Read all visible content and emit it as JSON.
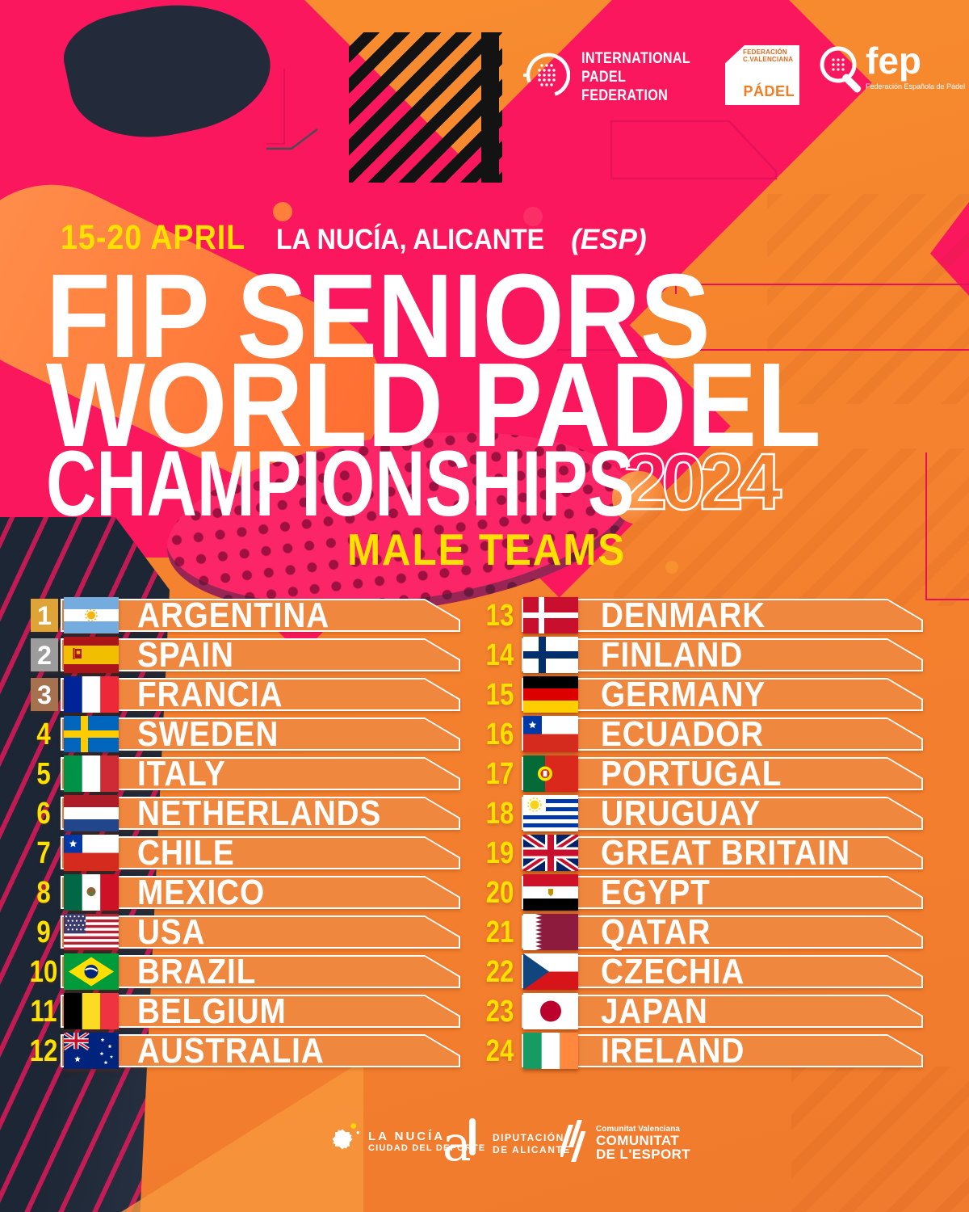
{
  "colors": {
    "bg-orange": "#F5822E",
    "bar-orange": "#F0873E",
    "pink": "#FA175E",
    "crimson": "#E5125A",
    "yellow": "#FFE100",
    "navy": "#232B3B",
    "white": "#FFFFFF",
    "gold": "#DFA437",
    "silver": "#9C9C9C",
    "bronze": "#A5714F"
  },
  "header_logos": {
    "ipf": {
      "line1": "INTERNATIONAL",
      "line2": "PADEL",
      "line3": "FEDERATION"
    },
    "fvp": {
      "small1": "FEDERACIÓN",
      "small2": "C.VALENCIANA",
      "label": "PÁDEL"
    },
    "fep": {
      "label": "fep",
      "sub": "Federación Española de Pádel"
    }
  },
  "event": {
    "dates": "15-20 APRIL",
    "location": "LA NUCÍA, ALICANTE",
    "location_suffix": "(ESP)",
    "title_line1": "FIP SENIORS",
    "title_line2": "WORLD PADEL",
    "title_line3": "CHAMPIONSHIPS",
    "year": "2024",
    "subtitle": "MALE TEAMS"
  },
  "teams": [
    {
      "num": "1",
      "name": "ARGENTINA",
      "flag": "argentina",
      "medal": "gold"
    },
    {
      "num": "2",
      "name": "SPAIN",
      "flag": "spain",
      "medal": "silver"
    },
    {
      "num": "3",
      "name": "FRANCIA",
      "flag": "france",
      "medal": "bronze"
    },
    {
      "num": "4",
      "name": "SWEDEN",
      "flag": "sweden",
      "medal": null
    },
    {
      "num": "5",
      "name": "ITALY",
      "flag": "italy",
      "medal": null
    },
    {
      "num": "6",
      "name": "NETHERLANDS",
      "flag": "netherlands",
      "medal": null
    },
    {
      "num": "7",
      "name": "CHILE",
      "flag": "chile",
      "medal": null
    },
    {
      "num": "8",
      "name": "MEXICO",
      "flag": "mexico",
      "medal": null
    },
    {
      "num": "9",
      "name": "USA",
      "flag": "usa",
      "medal": null
    },
    {
      "num": "10",
      "name": "BRAZIL",
      "flag": "brazil",
      "medal": null
    },
    {
      "num": "11",
      "name": "BELGIUM",
      "flag": "belgium",
      "medal": null
    },
    {
      "num": "12",
      "name": "AUSTRALIA",
      "flag": "australia",
      "medal": null
    },
    {
      "num": "13",
      "name": "DENMARK",
      "flag": "denmark",
      "medal": null
    },
    {
      "num": "14",
      "name": "FINLAND",
      "flag": "finland",
      "medal": null
    },
    {
      "num": "15",
      "name": "GERMANY",
      "flag": "germany",
      "medal": null
    },
    {
      "num": "16",
      "name": "ECUADOR",
      "flag": "chile",
      "medal": null
    },
    {
      "num": "17",
      "name": "PORTUGAL",
      "flag": "portugal",
      "medal": null
    },
    {
      "num": "18",
      "name": "URUGUAY",
      "flag": "uruguay",
      "medal": null
    },
    {
      "num": "19",
      "name": "GREAT BRITAIN",
      "flag": "great-britain",
      "medal": null
    },
    {
      "num": "20",
      "name": "EGYPT",
      "flag": "egypt",
      "medal": null
    },
    {
      "num": "21",
      "name": "QATAR",
      "flag": "qatar",
      "medal": null
    },
    {
      "num": "22",
      "name": "CZECHIA",
      "flag": "czechia",
      "medal": null
    },
    {
      "num": "23",
      "name": "JAPAN",
      "flag": "japan",
      "medal": null
    },
    {
      "num": "24",
      "name": "IRELAND",
      "flag": "ireland",
      "medal": null
    }
  ],
  "footer_logos": {
    "la_nucia": {
      "line1": "LA NUCÍA",
      "line2": "CIUDAD DEL DEPORTE"
    },
    "diputacion": {
      "line1": "DIPUTACIÓN",
      "line2": "DE ALICANTE"
    },
    "comunitat": {
      "small": "Comunitat Valenciana",
      "line1": "COMUNITAT",
      "line2": "DE L'ESPORT"
    }
  }
}
